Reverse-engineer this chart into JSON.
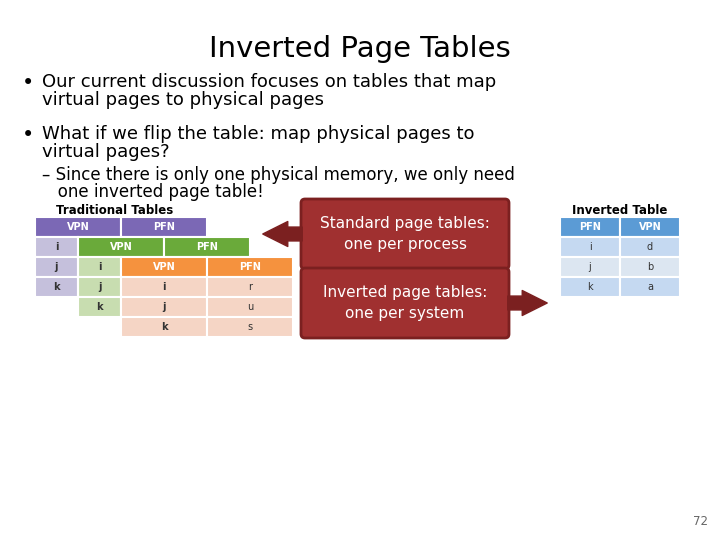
{
  "title": "Inverted Page Tables",
  "bullet1_line1": "Our current discussion focuses on tables that map",
  "bullet1_line2": "virtual pages to physical pages",
  "bullet2_line1": "What if we flip the table: map physical pages to",
  "bullet2_line2": "virtual pages?",
  "sub_line1": "– Since there is only one physical memory, we only need",
  "sub_line2": "   one inverted page table!",
  "trad_label": "Traditional Tables",
  "inv_label": "Inverted Table",
  "std_box_line1": "Standard page tables:",
  "std_box_line2": "one per process",
  "inv_box_line1": "Inverted page tables:",
  "inv_box_line2": "one per system",
  "page_num": "72",
  "bg_color": "#ffffff",
  "title_color": "#000000",
  "text_color": "#000000",
  "col1_header_color": "#7B68B5",
  "col2_header_color": "#6AAA3A",
  "col3_header_color": "#F5923E",
  "inv_header_color": "#5B9BD5",
  "col1_row_color": "#C5C0DC",
  "col2_row_color": "#C8DDB0",
  "col3_row_light": "#F5D5C5",
  "inv_row1_color": "#C5D9F1",
  "inv_row2_color": "#DCE6F1",
  "arrow_color": "#7B2020",
  "callout_color": "#A03030",
  "callout_edge": "#7B2020"
}
